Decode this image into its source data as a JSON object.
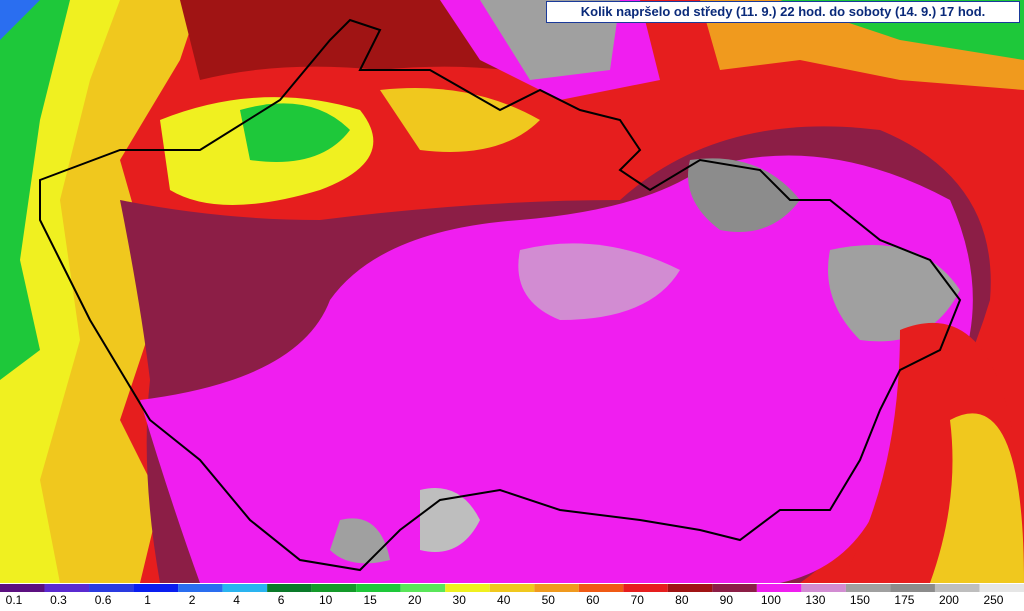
{
  "title": "Kolik napršelo od středy (11. 9.) 22 hod. do soboty (14. 9.) 17 hod.",
  "legend": {
    "values": [
      0.1,
      0.3,
      0.6,
      1,
      2,
      4,
      6,
      10,
      15,
      20,
      30,
      40,
      50,
      60,
      70,
      80,
      90,
      100,
      130,
      150,
      175,
      200,
      250
    ],
    "colors": [
      "#5c1080",
      "#5a2ad0",
      "#2a3ae0",
      "#0a1ef0",
      "#2a6ef0",
      "#2ab4f0",
      "#0a7a2a",
      "#149a2a",
      "#1ec83a",
      "#5ae65a",
      "#f0f020",
      "#f0c81e",
      "#f09a1e",
      "#f05a14",
      "#e61e1e",
      "#a01414",
      "#8c1e46",
      "#f01ef0",
      "#d28cd2",
      "#a0a0a0",
      "#8c8c8c",
      "#bebebe",
      "#e6e6e6"
    ]
  }
}
